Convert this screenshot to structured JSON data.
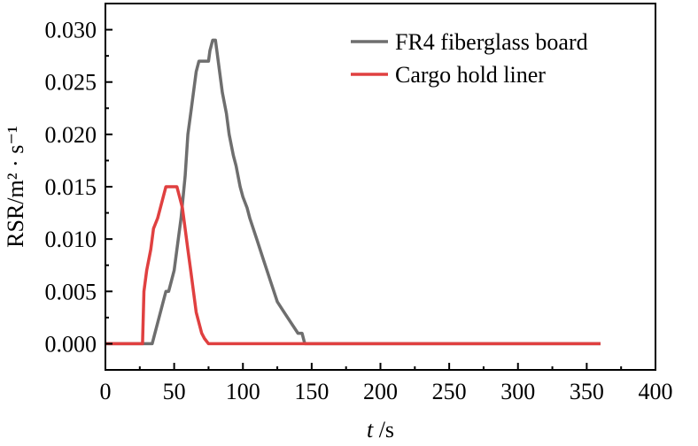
{
  "chart_data": {
    "type": "line",
    "xlabel_var": "t",
    "xlabel_unit": " /s",
    "ylabel": "RSR/m² · s⁻¹",
    "xlim": [
      0,
      400
    ],
    "ylim": [
      -0.0025,
      0.0325
    ],
    "x_ticks": [
      0,
      50,
      100,
      150,
      200,
      250,
      300,
      350,
      400
    ],
    "y_ticks": [
      0.0,
      0.005,
      0.01,
      0.015,
      0.02,
      0.025,
      0.03
    ],
    "y_tick_labels": [
      "0.000",
      "0.005",
      "0.010",
      "0.015",
      "0.020",
      "0.025",
      "0.030"
    ],
    "x_tick_labels": [
      "0",
      "50",
      "100",
      "150",
      "200",
      "250",
      "300",
      "350",
      "400"
    ],
    "grid": false,
    "legend_position": "top-right",
    "series": [
      {
        "name": "FR4 fiberglass board",
        "color": "#6e6e6e",
        "x": [
          0,
          30,
          34,
          36,
          40,
          42,
          44,
          46,
          48,
          50,
          52,
          55,
          58,
          60,
          62,
          64,
          66,
          68,
          70,
          75,
          76,
          78,
          80,
          81,
          83,
          85,
          88,
          90,
          93,
          95,
          98,
          100,
          103,
          105,
          110,
          115,
          120,
          125,
          130,
          135,
          140,
          143,
          145,
          150,
          200,
          250,
          300,
          360
        ],
        "y": [
          0,
          0,
          0,
          0.001,
          0.003,
          0.004,
          0.005,
          0.005,
          0.006,
          0.007,
          0.009,
          0.012,
          0.016,
          0.02,
          0.022,
          0.024,
          0.026,
          0.027,
          0.027,
          0.027,
          0.028,
          0.029,
          0.029,
          0.028,
          0.026,
          0.024,
          0.022,
          0.02,
          0.018,
          0.017,
          0.015,
          0.014,
          0.013,
          0.012,
          0.01,
          0.008,
          0.006,
          0.004,
          0.003,
          0.002,
          0.001,
          0.001,
          0,
          0,
          0,
          0,
          0,
          0
        ]
      },
      {
        "name": "Cargo hold liner",
        "color": "#e04040",
        "x": [
          0,
          27,
          28,
          30,
          33,
          35,
          38,
          40,
          42,
          44,
          46,
          48,
          50,
          52,
          54,
          56,
          58,
          60,
          62,
          64,
          66,
          68,
          70,
          72,
          75,
          80,
          150,
          200,
          250,
          300,
          360
        ],
        "y": [
          0,
          0,
          0.005,
          0.007,
          0.009,
          0.011,
          0.012,
          0.013,
          0.014,
          0.015,
          0.015,
          0.015,
          0.015,
          0.015,
          0.014,
          0.013,
          0.011,
          0.009,
          0.007,
          0.005,
          0.003,
          0.002,
          0.001,
          0.0005,
          0,
          0,
          0,
          0,
          0,
          0,
          0
        ]
      }
    ]
  }
}
